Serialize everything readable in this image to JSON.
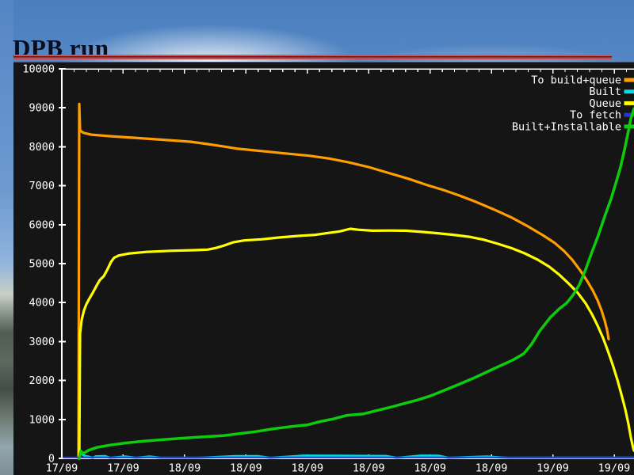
{
  "slide": {
    "title": "DPB run"
  },
  "chart_data": {
    "type": "line",
    "title": "",
    "background": "#151515",
    "plot_text_color": "#ffffff",
    "legend_position": "top-right inside",
    "grid": false,
    "x_axis": {
      "labels": [
        "17/09",
        "17/09",
        "18/09",
        "18/09",
        "18/09",
        "18/09",
        "18/09",
        "18/09",
        "19/09",
        "19/09"
      ]
    },
    "y_axis": {
      "min": 0,
      "max": 10000,
      "step": 1000
    },
    "x_unit": "screenshot-px (time axis 17/09 to 19/09)",
    "series": [
      {
        "name": "To build+queue",
        "color": "#ff9e00",
        "points": [
          [
            99,
            0
          ],
          [
            100,
            9100
          ],
          [
            101,
            8420
          ],
          [
            105,
            8360
          ],
          [
            115,
            8310
          ],
          [
            140,
            8270
          ],
          [
            170,
            8230
          ],
          [
            205,
            8180
          ],
          [
            240,
            8130
          ],
          [
            262,
            8070
          ],
          [
            285,
            8000
          ],
          [
            300,
            7950
          ],
          [
            330,
            7890
          ],
          [
            360,
            7830
          ],
          [
            390,
            7770
          ],
          [
            415,
            7700
          ],
          [
            440,
            7600
          ],
          [
            465,
            7480
          ],
          [
            490,
            7330
          ],
          [
            515,
            7180
          ],
          [
            540,
            7010
          ],
          [
            558,
            6900
          ],
          [
            578,
            6760
          ],
          [
            600,
            6590
          ],
          [
            622,
            6400
          ],
          [
            645,
            6190
          ],
          [
            665,
            5970
          ],
          [
            685,
            5730
          ],
          [
            700,
            5530
          ],
          [
            712,
            5320
          ],
          [
            722,
            5100
          ],
          [
            732,
            4830
          ],
          [
            741,
            4550
          ],
          [
            748,
            4310
          ],
          [
            754,
            4060
          ],
          [
            759,
            3800
          ],
          [
            763,
            3540
          ],
          [
            766,
            3300
          ],
          [
            768,
            3060
          ]
        ]
      },
      {
        "name": "Built",
        "color": "#00dde8",
        "points": [
          [
            100,
            0
          ],
          [
            101,
            200
          ],
          [
            103,
            120
          ],
          [
            107,
            60
          ],
          [
            112,
            40
          ],
          [
            117,
            12
          ],
          [
            121,
            50
          ],
          [
            133,
            55
          ],
          [
            139,
            12
          ],
          [
            158,
            45
          ],
          [
            172,
            12
          ],
          [
            189,
            45
          ],
          [
            203,
            12
          ],
          [
            250,
            12
          ],
          [
            297,
            55
          ],
          [
            326,
            55
          ],
          [
            341,
            12
          ],
          [
            384,
            70
          ],
          [
            430,
            65
          ],
          [
            487,
            58
          ],
          [
            501,
            12
          ],
          [
            531,
            70
          ],
          [
            554,
            65
          ],
          [
            566,
            12
          ],
          [
            614,
            45
          ],
          [
            641,
            12
          ],
          [
            700,
            14
          ],
          [
            799,
            14
          ]
        ]
      },
      {
        "name": "Queue",
        "color": "#ffff00",
        "points": [
          [
            100,
            0
          ],
          [
            101,
            3200
          ],
          [
            103,
            3550
          ],
          [
            106,
            3800
          ],
          [
            109,
            3960
          ],
          [
            113,
            4110
          ],
          [
            117,
            4250
          ],
          [
            122,
            4440
          ],
          [
            126,
            4580
          ],
          [
            131,
            4680
          ],
          [
            135,
            4830
          ],
          [
            140,
            5040
          ],
          [
            144,
            5150
          ],
          [
            150,
            5210
          ],
          [
            163,
            5260
          ],
          [
            185,
            5300
          ],
          [
            215,
            5330
          ],
          [
            245,
            5345
          ],
          [
            262,
            5360
          ],
          [
            272,
            5400
          ],
          [
            282,
            5460
          ],
          [
            295,
            5550
          ],
          [
            308,
            5595
          ],
          [
            330,
            5625
          ],
          [
            352,
            5670
          ],
          [
            375,
            5710
          ],
          [
            398,
            5740
          ],
          [
            413,
            5785
          ],
          [
            428,
            5825
          ],
          [
            442,
            5895
          ],
          [
            452,
            5870
          ],
          [
            470,
            5845
          ],
          [
            492,
            5850
          ],
          [
            512,
            5845
          ],
          [
            532,
            5815
          ],
          [
            552,
            5780
          ],
          [
            572,
            5740
          ],
          [
            592,
            5690
          ],
          [
            610,
            5615
          ],
          [
            628,
            5510
          ],
          [
            645,
            5400
          ],
          [
            662,
            5265
          ],
          [
            678,
            5105
          ],
          [
            693,
            4920
          ],
          [
            706,
            4710
          ],
          [
            718,
            4480
          ],
          [
            729,
            4250
          ],
          [
            739,
            3980
          ],
          [
            747,
            3700
          ],
          [
            754,
            3410
          ],
          [
            761,
            3090
          ],
          [
            767,
            2760
          ],
          [
            773,
            2410
          ],
          [
            779,
            2020
          ],
          [
            784,
            1650
          ],
          [
            789,
            1260
          ],
          [
            793,
            880
          ],
          [
            796,
            540
          ],
          [
            799,
            260
          ],
          [
            800,
            200
          ]
        ]
      },
      {
        "name": "To fetch",
        "color": "#2b35d8",
        "points": [
          [
            80,
            25
          ],
          [
            300,
            25
          ],
          [
            600,
            25
          ],
          [
            799,
            25
          ]
        ]
      },
      {
        "name": "Built+Installable",
        "color": "#0ccc0c",
        "points": [
          [
            100,
            0
          ],
          [
            102,
            190
          ],
          [
            105,
            130
          ],
          [
            112,
            210
          ],
          [
            122,
            280
          ],
          [
            138,
            340
          ],
          [
            158,
            395
          ],
          [
            180,
            440
          ],
          [
            205,
            480
          ],
          [
            232,
            520
          ],
          [
            258,
            555
          ],
          [
            282,
            585
          ],
          [
            302,
            635
          ],
          [
            322,
            685
          ],
          [
            345,
            760
          ],
          [
            368,
            820
          ],
          [
            388,
            860
          ],
          [
            404,
            945
          ],
          [
            420,
            1010
          ],
          [
            438,
            1105
          ],
          [
            458,
            1140
          ],
          [
            477,
            1235
          ],
          [
            494,
            1320
          ],
          [
            511,
            1415
          ],
          [
            527,
            1500
          ],
          [
            544,
            1610
          ],
          [
            561,
            1750
          ],
          [
            579,
            1900
          ],
          [
            597,
            2055
          ],
          [
            614,
            2215
          ],
          [
            631,
            2375
          ],
          [
            647,
            2525
          ],
          [
            661,
            2690
          ],
          [
            671,
            2940
          ],
          [
            681,
            3270
          ],
          [
            694,
            3610
          ],
          [
            705,
            3830
          ],
          [
            715,
            3990
          ],
          [
            723,
            4190
          ],
          [
            731,
            4460
          ],
          [
            739,
            4850
          ],
          [
            747,
            5300
          ],
          [
            755,
            5730
          ],
          [
            763,
            6210
          ],
          [
            771,
            6660
          ],
          [
            777,
            7060
          ],
          [
            783,
            7480
          ],
          [
            788,
            7920
          ],
          [
            792,
            8310
          ],
          [
            796,
            8720
          ],
          [
            800,
            8980
          ]
        ]
      }
    ]
  }
}
